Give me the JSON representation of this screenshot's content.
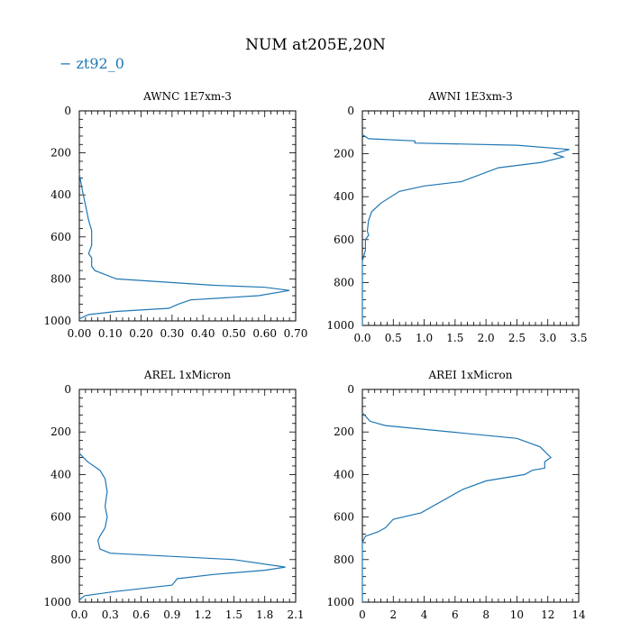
{
  "figure": {
    "title": "NUM at205E,20N",
    "legend": {
      "label": "zt92_0",
      "color": "#1f77b4",
      "placement": "top-left"
    }
  },
  "chart_data": [
    {
      "type": "line",
      "title": "AWNC  1E7xm-3",
      "xlim": [
        0.0,
        0.7
      ],
      "ylim": [
        1000,
        0
      ],
      "xticks": [
        "0.00",
        "0.10",
        "0.20",
        "0.30",
        "0.40",
        "0.50",
        "0.60",
        "0.70"
      ],
      "xtick_values": [
        0,
        0.1,
        0.2,
        0.3,
        0.4,
        0.5,
        0.6,
        0.7
      ],
      "yticks": [
        "0",
        "200",
        "400",
        "600",
        "800",
        "1000"
      ],
      "ytick_values": [
        0,
        200,
        400,
        600,
        800,
        1000
      ],
      "series": [
        {
          "name": "zt92_0",
          "x": [
            0,
            0.01,
            0.02,
            0.03,
            0.04,
            0.04,
            0.03,
            0.04,
            0.04,
            0.05,
            0.12,
            0.43,
            0.6,
            0.68,
            0.58,
            0.36,
            0.32,
            0.29,
            0.12,
            0.03,
            0
          ],
          "y": [
            300,
            380,
            450,
            520,
            570,
            640,
            680,
            700,
            740,
            760,
            800,
            830,
            840,
            855,
            880,
            900,
            920,
            940,
            955,
            970,
            990
          ]
        }
      ]
    },
    {
      "type": "line",
      "title": "AWNI  1E3xm-3",
      "xlim": [
        0.0,
        3.5
      ],
      "ylim": [
        1000,
        0
      ],
      "xticks": [
        "0.0",
        "0.5",
        "1.0",
        "1.5",
        "2.0",
        "2.5",
        "3.0",
        "3.5"
      ],
      "xtick_values": [
        0,
        0.5,
        1,
        1.5,
        2,
        2.5,
        3,
        3.5
      ],
      "yticks": [
        "0",
        "200",
        "400",
        "600",
        "800",
        "1000"
      ],
      "ytick_values": [
        0,
        200,
        400,
        600,
        800,
        1000
      ],
      "series": [
        {
          "name": "zt92_0",
          "x": [
            0,
            0.1,
            0.85,
            0.85,
            2.5,
            3.35,
            3.1,
            3.25,
            2.9,
            2.2,
            1.6,
            1,
            0.6,
            0.3,
            0.15,
            0.1,
            0.08,
            0.1,
            0.05,
            0.05,
            0,
            0
          ],
          "y": [
            110,
            130,
            140,
            150,
            160,
            180,
            200,
            215,
            240,
            265,
            330,
            350,
            375,
            430,
            470,
            510,
            560,
            580,
            600,
            650,
            700,
            1000
          ]
        }
      ]
    },
    {
      "type": "line",
      "title": "AREL  1xMicron",
      "xlim": [
        0.0,
        2.1
      ],
      "ylim": [
        1000,
        0
      ],
      "xticks": [
        "0.0",
        "0.3",
        "0.6",
        "0.9",
        "1.2",
        "1.5",
        "1.8",
        "2.1"
      ],
      "xtick_values": [
        0,
        0.3,
        0.6,
        0.9,
        1.2,
        1.5,
        1.8,
        2.1
      ],
      "yticks": [
        "0",
        "200",
        "400",
        "600",
        "800",
        "1000"
      ],
      "ytick_values": [
        0,
        200,
        400,
        600,
        800,
        1000
      ],
      "series": [
        {
          "name": "zt92_0",
          "x": [
            0,
            0.08,
            0.2,
            0.25,
            0.27,
            0.25,
            0.27,
            0.25,
            0.2,
            0.18,
            0.2,
            0.3,
            1.5,
            2,
            1.8,
            1.3,
            0.95,
            0.9,
            0.35,
            0.05,
            0
          ],
          "y": [
            300,
            340,
            380,
            420,
            480,
            550,
            600,
            650,
            690,
            710,
            750,
            770,
            800,
            835,
            850,
            870,
            890,
            920,
            950,
            970,
            990
          ]
        }
      ]
    },
    {
      "type": "line",
      "title": "AREI  1xMicron",
      "xlim": [
        0,
        14
      ],
      "ylim": [
        1000,
        0
      ],
      "xticks": [
        "0",
        "2",
        "4",
        "6",
        "8",
        "10",
        "12",
        "14"
      ],
      "xtick_values": [
        0,
        2,
        4,
        6,
        8,
        10,
        12,
        14
      ],
      "yticks": [
        "0",
        "200",
        "400",
        "600",
        "800",
        "1000"
      ],
      "ytick_values": [
        0,
        200,
        400,
        600,
        800,
        1000
      ],
      "series": [
        {
          "name": "zt92_0",
          "x": [
            0,
            0.5,
            1.5,
            10,
            11.5,
            12.2,
            11.8,
            11.8,
            11,
            10.5,
            8,
            6.5,
            3.8,
            2,
            1.5,
            1,
            0.2,
            0,
            0
          ],
          "y": [
            110,
            150,
            170,
            230,
            270,
            320,
            340,
            370,
            380,
            400,
            430,
            470,
            580,
            610,
            650,
            670,
            690,
            720,
            1000
          ]
        }
      ]
    }
  ]
}
